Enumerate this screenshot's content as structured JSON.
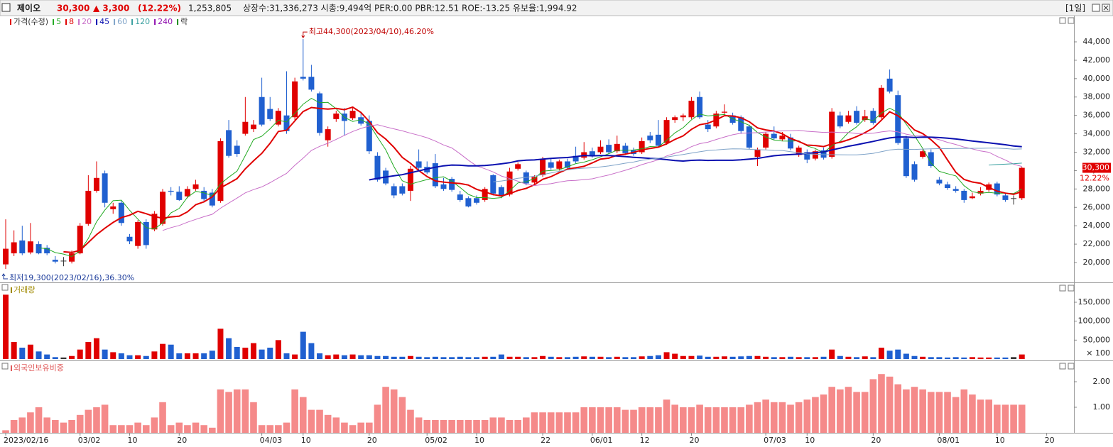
{
  "header": {
    "name": "제이오",
    "price": "30,300",
    "change": "▲ 3,300",
    "rate": "(12.22%)",
    "volume": "1,253,805",
    "info": "상장수:31,336,273 시총:9,494억 PER:0.00 PBR:12.51 ROE:-13.25 유보율:1,994.92",
    "period": "[1일]"
  },
  "chart_data": [
    {
      "type": "candlestick",
      "price_name": "가격(수정)",
      "price_color": "#e00000",
      "lock_name": "락",
      "lock_color": "#1a8a1a",
      "up_color": "#e00000",
      "down_color": "#2060d0",
      "ma": [
        {
          "name": 5,
          "color": "#22aa22"
        },
        {
          "name": 8,
          "color": "#e00000"
        },
        {
          "name": 20,
          "color": "#c86ec8"
        },
        {
          "name": 45,
          "color": "#0a10b0"
        },
        {
          "name": 60,
          "color": "#7fa3c8"
        },
        {
          "name": 120,
          "color": "#3aa0a0"
        },
        {
          "name": 240,
          "color": "#9010b0"
        }
      ],
      "high_label": "최고44,300(2023/04/10),46.20%",
      "low_label": "최저19,300(2023/02/16),36.30%",
      "last_label": {
        "value": 30300,
        "label": "30,300"
      },
      "change_label": "12.22%",
      "xlim": [
        -0.69,
        129.3
      ],
      "xticks": [
        {
          "value": 0,
          "label": "2023/02/16"
        },
        {
          "value": 9,
          "label": "03/02"
        },
        {
          "value": 15,
          "label": "10"
        },
        {
          "value": 21,
          "label": "20"
        },
        {
          "value": 31,
          "label": "04/03"
        },
        {
          "value": 36,
          "label": "10"
        },
        {
          "value": 44,
          "label": "20"
        },
        {
          "value": 51,
          "label": "05/02"
        },
        {
          "value": 57,
          "label": "10"
        },
        {
          "value": 65,
          "label": "22"
        },
        {
          "value": 71,
          "label": "06/01"
        },
        {
          "value": 77,
          "label": "12"
        },
        {
          "value": 83,
          "label": "20"
        },
        {
          "value": 92,
          "label": "07/03"
        },
        {
          "value": 97,
          "label": "10"
        },
        {
          "value": 105,
          "label": "20"
        },
        {
          "value": 113,
          "label": "08/01"
        },
        {
          "value": 120,
          "label": "10"
        },
        {
          "value": 126,
          "label": "20"
        }
      ],
      "ylim": [
        17840,
        46700
      ],
      "yticks": [
        {
          "value": 20000,
          "label": "20,000"
        },
        {
          "value": 22000,
          "label": "22,000"
        },
        {
          "value": 24000,
          "label": "24,000"
        },
        {
          "value": 26000,
          "label": "26,000"
        },
        {
          "value": 28000,
          "label": "28,000"
        },
        {
          "value": 30000,
          "label": "30,000"
        },
        {
          "value": 32000,
          "label": "32,000"
        },
        {
          "value": 34000,
          "label": "34,000"
        },
        {
          "value": 36000,
          "label": "36,000"
        },
        {
          "value": 38000,
          "label": "38,000"
        },
        {
          "value": 40000,
          "label": "40,000"
        },
        {
          "value": 42000,
          "label": "42,000"
        },
        {
          "value": 44000,
          "label": "44,000"
        }
      ],
      "ohlc": [
        [
          19800,
          24700,
          19300,
          21500
        ],
        [
          21000,
          23500,
          20700,
          22200
        ],
        [
          22400,
          24000,
          20800,
          21000
        ],
        [
          21100,
          24300,
          20900,
          22300
        ],
        [
          22000,
          22300,
          20900,
          21000
        ],
        [
          21600,
          21900,
          20800,
          21000
        ],
        [
          20300,
          20700,
          19900,
          20100
        ],
        [
          20200,
          20600,
          19600,
          20200
        ],
        [
          20100,
          21300,
          19900,
          21000
        ],
        [
          21000,
          24300,
          20900,
          24000
        ],
        [
          24200,
          29500,
          24000,
          27800
        ],
        [
          27800,
          31000,
          27600,
          29200
        ],
        [
          29700,
          30000,
          26000,
          26500
        ],
        [
          25800,
          26500,
          25300,
          26100
        ],
        [
          26500,
          26700,
          24000,
          24300
        ],
        [
          22800,
          23100,
          22000,
          22300
        ],
        [
          21800,
          24600,
          21500,
          24400
        ],
        [
          24400,
          24700,
          21500,
          21900
        ],
        [
          23600,
          25600,
          23400,
          25300
        ],
        [
          24200,
          28000,
          24000,
          27700
        ],
        [
          27800,
          28200,
          27300,
          27700
        ],
        [
          27700,
          28300,
          26700,
          26800
        ],
        [
          27200,
          28300,
          27000,
          28000
        ],
        [
          28000,
          29000,
          27800,
          28500
        ],
        [
          27800,
          28200,
          26700,
          26900
        ],
        [
          27600,
          28000,
          26000,
          26200
        ],
        [
          26700,
          33500,
          26500,
          33200
        ],
        [
          34400,
          35500,
          31400,
          31600
        ],
        [
          32700,
          33300,
          31500,
          31800
        ],
        [
          34000,
          38000,
          33800,
          35300
        ],
        [
          34500,
          35500,
          34200,
          35000
        ],
        [
          38000,
          40100,
          34800,
          35000
        ],
        [
          36700,
          38000,
          35400,
          35600
        ],
        [
          35000,
          36800,
          34800,
          36500
        ],
        [
          36000,
          40800,
          34000,
          34300
        ],
        [
          35800,
          40100,
          35500,
          39700
        ],
        [
          40200,
          44300,
          39800,
          40000
        ],
        [
          40200,
          41500,
          38600,
          38800
        ],
        [
          38400,
          38600,
          33800,
          34100
        ],
        [
          33300,
          34800,
          32600,
          34500
        ],
        [
          35600,
          36500,
          35300,
          36200
        ],
        [
          36200,
          36800,
          33800,
          35400
        ],
        [
          35700,
          36800,
          35500,
          36500
        ],
        [
          35800,
          36300,
          34900,
          35100
        ],
        [
          35400,
          36000,
          31800,
          32100
        ],
        [
          31600,
          32000,
          28800,
          29000
        ],
        [
          30000,
          30300,
          28400,
          28600
        ],
        [
          28300,
          28600,
          27000,
          27300
        ],
        [
          28300,
          28600,
          27300,
          27500
        ],
        [
          27800,
          30500,
          26700,
          30200
        ],
        [
          31000,
          32300,
          30100,
          30300
        ],
        [
          30400,
          31000,
          29600,
          29800
        ],
        [
          30800,
          31800,
          28100,
          28300
        ],
        [
          28500,
          29200,
          27800,
          28000
        ],
        [
          29100,
          29300,
          27700,
          27900
        ],
        [
          27400,
          27800,
          26600,
          26800
        ],
        [
          27000,
          27200,
          26000,
          26100
        ],
        [
          27000,
          27300,
          26300,
          26500
        ],
        [
          26800,
          28200,
          26600,
          28000
        ],
        [
          29500,
          29600,
          27300,
          27500
        ],
        [
          28200,
          28400,
          27000,
          27200
        ],
        [
          27400,
          30300,
          27200,
          29900
        ],
        [
          30200,
          30900,
          30000,
          30700
        ],
        [
          29800,
          30000,
          28400,
          28600
        ],
        [
          28700,
          29500,
          28500,
          29300
        ],
        [
          29500,
          31500,
          29300,
          31200
        ],
        [
          30900,
          31300,
          30100,
          30300
        ],
        [
          30200,
          31200,
          30000,
          31000
        ],
        [
          31000,
          31300,
          30100,
          30300
        ],
        [
          31600,
          32600,
          30800,
          31000
        ],
        [
          31400,
          33100,
          31200,
          32000
        ],
        [
          32100,
          32500,
          31400,
          31600
        ],
        [
          32000,
          33300,
          31800,
          32600
        ],
        [
          32800,
          33400,
          31800,
          32000
        ],
        [
          32100,
          33800,
          31900,
          32900
        ],
        [
          32700,
          33000,
          31700,
          31900
        ],
        [
          32200,
          32500,
          31600,
          31800
        ],
        [
          32000,
          33600,
          31800,
          33200
        ],
        [
          33800,
          34200,
          33000,
          33300
        ],
        [
          33900,
          35500,
          32500,
          32700
        ],
        [
          33000,
          35800,
          32800,
          35500
        ],
        [
          35500,
          36000,
          35200,
          35800
        ],
        [
          35800,
          36200,
          35400,
          36000
        ],
        [
          35800,
          38000,
          35600,
          37600
        ],
        [
          38000,
          38600,
          35600,
          35800
        ],
        [
          35000,
          35500,
          34200,
          34500
        ],
        [
          34800,
          36500,
          34600,
          36200
        ],
        [
          36300,
          37200,
          36000,
          36400
        ],
        [
          36000,
          36300,
          35000,
          35200
        ],
        [
          35800,
          36000,
          34000,
          34300
        ],
        [
          34800,
          35000,
          32300,
          32500
        ],
        [
          31500,
          32500,
          30500,
          32300
        ],
        [
          32500,
          34200,
          32300,
          34000
        ],
        [
          34000,
          34800,
          33300,
          33500
        ],
        [
          33400,
          34200,
          33200,
          33800
        ],
        [
          33600,
          34000,
          32200,
          32400
        ],
        [
          31700,
          32700,
          31500,
          32500
        ],
        [
          32000,
          32300,
          30800,
          31200
        ],
        [
          31300,
          32300,
          31100,
          32100
        ],
        [
          32200,
          32500,
          31200,
          31400
        ],
        [
          31500,
          36800,
          31300,
          36400
        ],
        [
          36000,
          36400,
          34600,
          34800
        ],
        [
          35300,
          36500,
          35100,
          36000
        ],
        [
          36500,
          37000,
          35000,
          35200
        ],
        [
          35500,
          36600,
          35300,
          35900
        ],
        [
          36500,
          36800,
          35000,
          35200
        ],
        [
          35800,
          39300,
          35600,
          39000
        ],
        [
          40000,
          41000,
          38400,
          38600
        ],
        [
          38200,
          38700,
          32800,
          33000
        ],
        [
          33500,
          33800,
          29200,
          29400
        ],
        [
          30700,
          31000,
          28800,
          29000
        ],
        [
          31500,
          32300,
          31300,
          32100
        ],
        [
          32000,
          32300,
          30300,
          30500
        ],
        [
          29000,
          29300,
          28400,
          28600
        ],
        [
          28500,
          28800,
          27900,
          28100
        ],
        [
          28000,
          28300,
          27600,
          27800
        ],
        [
          27800,
          28000,
          26500,
          26800
        ],
        [
          27000,
          27600,
          26900,
          27200
        ],
        [
          27500,
          28200,
          27300,
          27800
        ],
        [
          27900,
          28700,
          27700,
          28500
        ],
        [
          28600,
          28800,
          27200,
          27400
        ],
        [
          27300,
          27600,
          26600,
          26800
        ],
        [
          27000,
          27300,
          26300,
          27000
        ],
        [
          27000,
          30400,
          26800,
          30300
        ]
      ]
    },
    {
      "type": "bar",
      "title": "거래량",
      "title_color": "#a08a00",
      "unit": "× 100",
      "ylim": [
        0,
        180000
      ],
      "yticks": [
        {
          "value": 50000,
          "label": "50,000"
        },
        {
          "value": 100000,
          "label": "100,000"
        },
        {
          "value": 150000,
          "label": "150,000"
        }
      ],
      "values": [
        170000,
        45000,
        30000,
        38000,
        20000,
        12000,
        5000,
        4000,
        8000,
        25000,
        45000,
        55000,
        25000,
        18000,
        15000,
        10000,
        10000,
        8000,
        20000,
        40000,
        38000,
        15000,
        15000,
        15000,
        15000,
        22000,
        80000,
        55000,
        32000,
        30000,
        42000,
        25000,
        30000,
        50000,
        15000,
        12000,
        72000,
        42000,
        15000,
        10000,
        12000,
        10000,
        12000,
        10000,
        10000,
        8000,
        8000,
        6000,
        6000,
        8000,
        6000,
        5000,
        6000,
        5000,
        5000,
        6000,
        5000,
        5000,
        6000,
        6000,
        12000,
        6000,
        6000,
        5000,
        5000,
        8000,
        6000,
        5000,
        5000,
        6000,
        7000,
        6000,
        6000,
        5000,
        6000,
        5000,
        5000,
        7000,
        8000,
        10000,
        18000,
        14000,
        8000,
        8000,
        9000,
        6000,
        6000,
        7000,
        6000,
        7000,
        8000,
        8000,
        6000,
        5000,
        5000,
        6000,
        5000,
        5000,
        5000,
        6000,
        25000,
        8000,
        6000,
        5000,
        7000,
        5000,
        30000,
        22000,
        25000,
        14000,
        8000,
        6000,
        5000,
        5000,
        4000,
        5000,
        4000,
        5000,
        4000,
        4000,
        4000,
        4000,
        5000,
        12000
      ]
    },
    {
      "type": "bar",
      "title": "외국인보유비중",
      "title_color": "#e05a5a",
      "color": "#f58a8a",
      "ylim": [
        0,
        2.5
      ],
      "yticks": [
        {
          "value": 1,
          "label": "1.00"
        },
        {
          "value": 2,
          "label": "2.00"
        }
      ],
      "values": [
        0.1,
        0.5,
        0.6,
        0.8,
        1.0,
        0.6,
        0.5,
        0.4,
        0.5,
        0.7,
        0.9,
        1.0,
        1.1,
        0.3,
        0.3,
        0.3,
        0.4,
        0.3,
        0.6,
        1.2,
        0.3,
        0.4,
        0.3,
        0.4,
        0.3,
        0.2,
        1.7,
        1.6,
        1.7,
        1.7,
        1.2,
        0.3,
        0.3,
        0.3,
        0.4,
        1.7,
        1.4,
        0.9,
        0.9,
        0.7,
        0.6,
        0.4,
        0.3,
        0.4,
        0.4,
        1.1,
        1.8,
        1.7,
        1.4,
        0.9,
        0.6,
        0.5,
        0.5,
        0.5,
        0.5,
        0.5,
        0.5,
        0.5,
        0.5,
        0.6,
        0.6,
        0.5,
        0.5,
        0.6,
        0.8,
        0.8,
        0.8,
        0.8,
        0.8,
        0.8,
        1.0,
        1.0,
        1.0,
        1.0,
        1.0,
        0.9,
        0.9,
        1.0,
        1.0,
        1.0,
        1.3,
        1.1,
        1.0,
        1.0,
        1.1,
        1.0,
        1.0,
        1.0,
        1.0,
        1.0,
        1.1,
        1.2,
        1.3,
        1.2,
        1.2,
        1.1,
        1.2,
        1.3,
        1.4,
        1.5,
        1.8,
        1.7,
        1.8,
        1.6,
        1.6,
        2.1,
        2.3,
        2.2,
        1.9,
        1.7,
        1.8,
        1.7,
        1.6,
        1.6,
        1.6,
        1.4,
        1.7,
        1.5,
        1.3,
        1.3,
        1.1,
        1.1,
        1.1,
        1.1
      ]
    }
  ]
}
